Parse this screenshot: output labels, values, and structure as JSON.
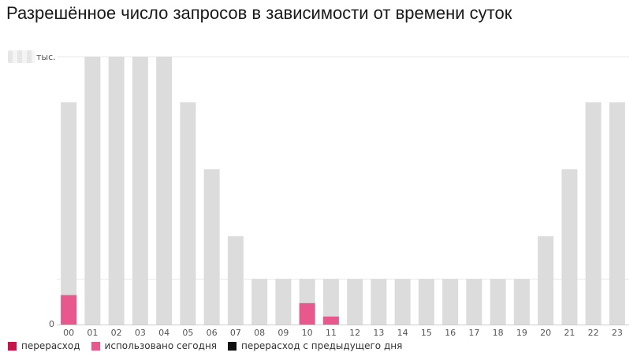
{
  "title": "Разрешённое число запросов в зависимости от времени суток",
  "y_unit_label": "тыс.",
  "y_zero_label": "0",
  "legend": [
    {
      "label": "перерасход",
      "color": "#c8134b"
    },
    {
      "label": "использовано сегодня",
      "color": "#e8588d"
    },
    {
      "label": "перерасход с предыдущего дня",
      "color": "#111111"
    }
  ],
  "colors": {
    "allowed": "#dcdcdc",
    "used": "#e8588d",
    "overage": "#c8134b",
    "grid": "#e9e9e9",
    "axis": "#cccccc"
  },
  "chart_data": {
    "type": "bar",
    "categories": [
      "00",
      "01",
      "02",
      "03",
      "04",
      "05",
      "06",
      "07",
      "08",
      "09",
      "10",
      "11",
      "12",
      "13",
      "14",
      "15",
      "16",
      "17",
      "18",
      "19",
      "20",
      "21",
      "22",
      "23"
    ],
    "series": [
      {
        "name": "",
        "values": [
          0.83,
          1.0,
          1.0,
          1.0,
          1.0,
          0.83,
          0.58,
          0.33,
          0.17,
          0.17,
          0.17,
          0.17,
          0.17,
          0.17,
          0.17,
          0.17,
          0.17,
          0.17,
          0.17,
          0.17,
          0.33,
          0.58,
          0.83,
          0.83
        ]
      },
      {
        "name": "использовано сегодня",
        "values": [
          0.11,
          0,
          0,
          0,
          0,
          0,
          0,
          0,
          0,
          0,
          0.08,
          0.03,
          0,
          0,
          0,
          0,
          0,
          0,
          0,
          0,
          0,
          0,
          0,
          0
        ]
      }
    ],
    "ylim": [
      0,
      1.0
    ],
    "grid": true
  }
}
